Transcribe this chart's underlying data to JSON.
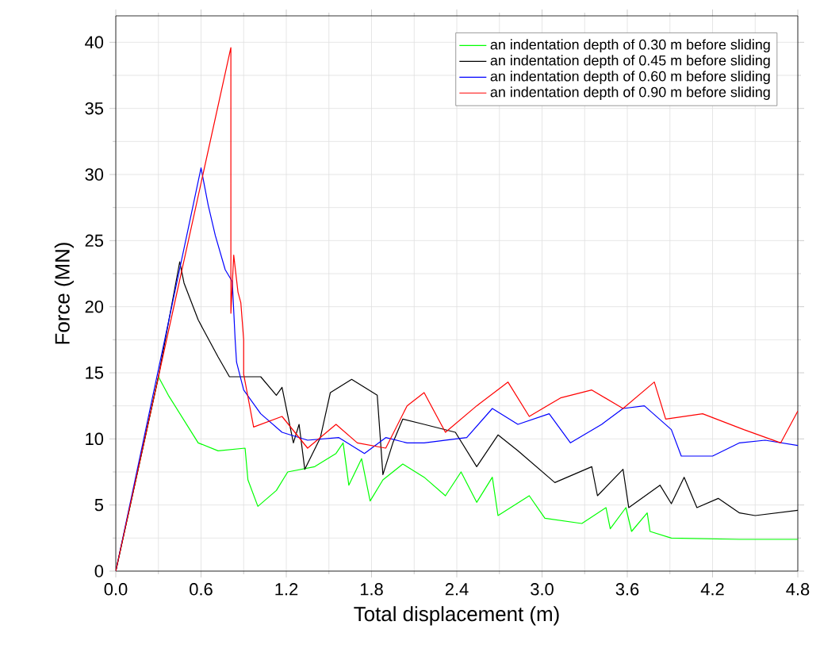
{
  "chart_data": {
    "type": "line",
    "xlabel": "Total displacement (m)",
    "ylabel": "Force (MN)",
    "xlim": [
      0,
      4.8
    ],
    "ylim": [
      0,
      42
    ],
    "xticks": [
      {
        "value": 0,
        "label": "0.0"
      },
      {
        "value": 0.6,
        "label": "0.6"
      },
      {
        "value": 1.2,
        "label": "1.2"
      },
      {
        "value": 1.8,
        "label": "1.8"
      },
      {
        "value": 2.4,
        "label": "2.4"
      },
      {
        "value": 3.0,
        "label": "3.0"
      },
      {
        "value": 3.6,
        "label": "3.6"
      },
      {
        "value": 4.2,
        "label": "4.2"
      },
      {
        "value": 4.8,
        "label": "4.8"
      }
    ],
    "yticks": [
      0,
      5,
      10,
      15,
      20,
      25,
      30,
      35,
      40
    ],
    "grid": true,
    "legend": "top right",
    "marker": "none",
    "line_style": "solid",
    "series": [
      {
        "name": "an indentation depth of 0.30 m before sliding",
        "color": "#00ff00",
        "x": [
          0,
          0.3,
          0.37,
          0.58,
          0.72,
          0.91,
          0.93,
          1.0,
          1.13,
          1.21,
          1.4,
          1.55,
          1.6,
          1.64,
          1.73,
          1.79,
          1.88,
          2.02,
          2.17,
          2.32,
          2.43,
          2.54,
          2.65,
          2.69,
          2.91,
          3.02,
          3.28,
          3.45,
          3.48,
          3.59,
          3.63,
          3.74,
          3.76,
          3.91,
          4.39,
          4.8
        ],
        "values": [
          0,
          14.7,
          13.3,
          9.7,
          9.1,
          9.3,
          6.9,
          4.9,
          6.1,
          7.5,
          7.9,
          8.9,
          9.7,
          6.5,
          8.5,
          5.3,
          6.9,
          8.1,
          7.1,
          5.7,
          7.5,
          5.2,
          7.1,
          4.2,
          5.7,
          4.0,
          3.6,
          4.8,
          3.2,
          4.8,
          3.0,
          4.4,
          3.0,
          2.5,
          2.4,
          2.4
        ]
      },
      {
        "name": "an indentation depth of 0.45 m before sliding",
        "color": "#000000",
        "x": [
          0,
          0.3,
          0.45,
          0.48,
          0.58,
          0.72,
          0.8,
          1.02,
          1.13,
          1.17,
          1.25,
          1.29,
          1.33,
          1.44,
          1.51,
          1.66,
          1.84,
          1.88,
          1.95,
          2.02,
          2.17,
          2.39,
          2.54,
          2.69,
          2.83,
          3.09,
          3.35,
          3.39,
          3.57,
          3.61,
          3.83,
          3.91,
          4.0,
          4.09,
          4.24,
          4.39,
          4.5,
          4.8
        ],
        "values": [
          0,
          14.7,
          23.4,
          21.8,
          19.0,
          16.2,
          14.7,
          14.7,
          13.3,
          13.9,
          9.7,
          11.1,
          7.7,
          10.1,
          13.5,
          14.5,
          13.3,
          7.3,
          9.7,
          11.5,
          11.1,
          10.5,
          7.9,
          10.3,
          9.1,
          6.7,
          7.9,
          5.7,
          7.7,
          4.8,
          6.5,
          5.1,
          7.1,
          4.8,
          5.5,
          4.4,
          4.2,
          4.6
        ]
      },
      {
        "name": "an indentation depth of 0.60 m before sliding",
        "color": "#0000ff",
        "x": [
          0,
          0.3,
          0.6,
          0.65,
          0.7,
          0.77,
          0.82,
          0.84,
          0.85,
          0.9,
          1.02,
          1.17,
          1.35,
          1.57,
          1.75,
          1.9,
          2.05,
          2.17,
          2.47,
          2.65,
          2.83,
          3.05,
          3.2,
          3.42,
          3.57,
          3.72,
          3.91,
          3.98,
          4.2,
          4.39,
          4.57,
          4.8
        ],
        "values": [
          0,
          null,
          30.5,
          27.7,
          25.4,
          22.8,
          21.9,
          17.5,
          15.8,
          13.7,
          11.9,
          10.5,
          9.9,
          10.1,
          8.9,
          10.1,
          9.7,
          9.7,
          10.1,
          12.3,
          11.1,
          11.9,
          9.7,
          11.1,
          12.3,
          12.5,
          10.7,
          8.7,
          8.7,
          9.7,
          9.9,
          9.5
        ]
      },
      {
        "name": "an indentation depth of 0.90 m before sliding",
        "color": "#ff0000",
        "x": [
          0,
          0.3,
          0.81,
          0.81,
          0.83,
          0.86,
          0.88,
          0.9,
          0.9,
          0.97,
          1.17,
          1.35,
          1.55,
          1.7,
          1.9,
          2.05,
          2.17,
          2.32,
          2.54,
          2.76,
          2.91,
          3.13,
          3.35,
          3.57,
          3.79,
          3.87,
          4.13,
          4.42,
          4.68,
          4.8
        ],
        "values": [
          0,
          14.7,
          39.6,
          19.5,
          23.9,
          21.1,
          20.3,
          17.5,
          14.9,
          10.9,
          11.7,
          9.3,
          11.1,
          9.7,
          9.3,
          12.5,
          13.5,
          10.5,
          12.5,
          14.3,
          11.7,
          13.1,
          13.7,
          12.3,
          14.3,
          11.5,
          11.9,
          10.7,
          9.7,
          12.1
        ]
      }
    ]
  }
}
